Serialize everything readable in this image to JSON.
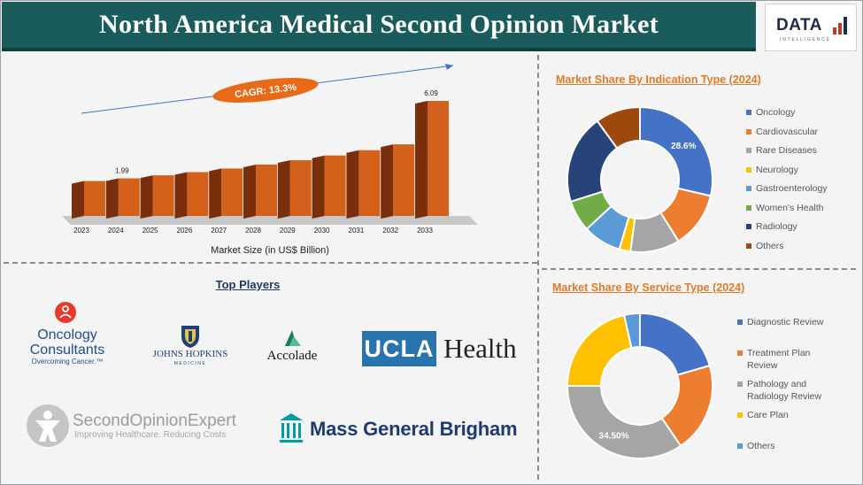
{
  "header": {
    "title": "North America Medical Second Opinion Market"
  },
  "logo": {
    "text": "DATA",
    "subtext": "INTELLIGENCE"
  },
  "chart_data": [
    {
      "type": "bar",
      "title": "",
      "categories": [
        "2023",
        "2024",
        "2025",
        "2026",
        "2027",
        "2028",
        "2029",
        "2030",
        "2031",
        "2032",
        "2033"
      ],
      "values": [
        1.85,
        1.99,
        2.15,
        2.32,
        2.51,
        2.72,
        2.95,
        3.2,
        3.48,
        3.79,
        6.09
      ],
      "value_labels": {
        "2024": "1.99",
        "2033": "6.09"
      },
      "xlabel": "Market Size (in US$ Billion)",
      "ylabel": "",
      "annotation": "CAGR: 13.3%",
      "colors": {
        "front": "#d3611b",
        "side": "#7a2f0c",
        "dark_front": "#6b2a0f"
      }
    },
    {
      "type": "pie",
      "title": "Market Share By Indication Type (2024)",
      "categories": [
        "Oncology",
        "Cardiovascular",
        "Rare Diseases",
        "Neurology",
        "Gastroenterology",
        "Women's Health",
        "Radiology",
        "Others"
      ],
      "values": [
        28.6,
        12.5,
        11.0,
        2.5,
        8.5,
        7.0,
        19.9,
        10.0
      ],
      "colors": [
        "#4472c4",
        "#ed7d31",
        "#a5a5a5",
        "#ffc000",
        "#5b9bd5",
        "#70ad47",
        "#264478",
        "#9e480e"
      ],
      "slice_labels": {
        "Oncology": "28.6%"
      }
    },
    {
      "type": "pie",
      "title": "Market Share By Service Type (2024)",
      "categories": [
        "Diagnostic Review",
        "Treatment Plan Review",
        "Pathology and Radiology Review",
        "Care Plan",
        "Others"
      ],
      "legend_lines": [
        [
          "Diagnostic Review"
        ],
        [
          "Treatment Plan",
          "Review"
        ],
        [
          "Pathology and",
          "Radiology Review"
        ],
        [
          "Care Plan"
        ],
        [
          "Others"
        ]
      ],
      "values": [
        20.5,
        20.0,
        34.5,
        21.5,
        3.5
      ],
      "colors": [
        "#4472c4",
        "#ed7d31",
        "#a5a5a5",
        "#ffc000",
        "#5b9bd5"
      ],
      "slice_labels": {
        "Pathology and Radiology Review": "34.50%"
      }
    }
  ],
  "players": {
    "title": "Top Players",
    "oncology": {
      "line1": "Oncology",
      "line2": "Consultants",
      "tagline": "Overcoming Cancer.™"
    },
    "jhu": {
      "line1": "JOHNS HOPKINS",
      "line2": "MEDICINE"
    },
    "accolade": {
      "name": "Accolade"
    },
    "ucla": {
      "box": "UCLA",
      "word": "Health"
    },
    "soe": {
      "name": "SecondOpinionExpert",
      "tagline": "Improving Healthcare. Reducing Costs"
    },
    "mgb": {
      "name": "Mass General Brigham"
    }
  }
}
